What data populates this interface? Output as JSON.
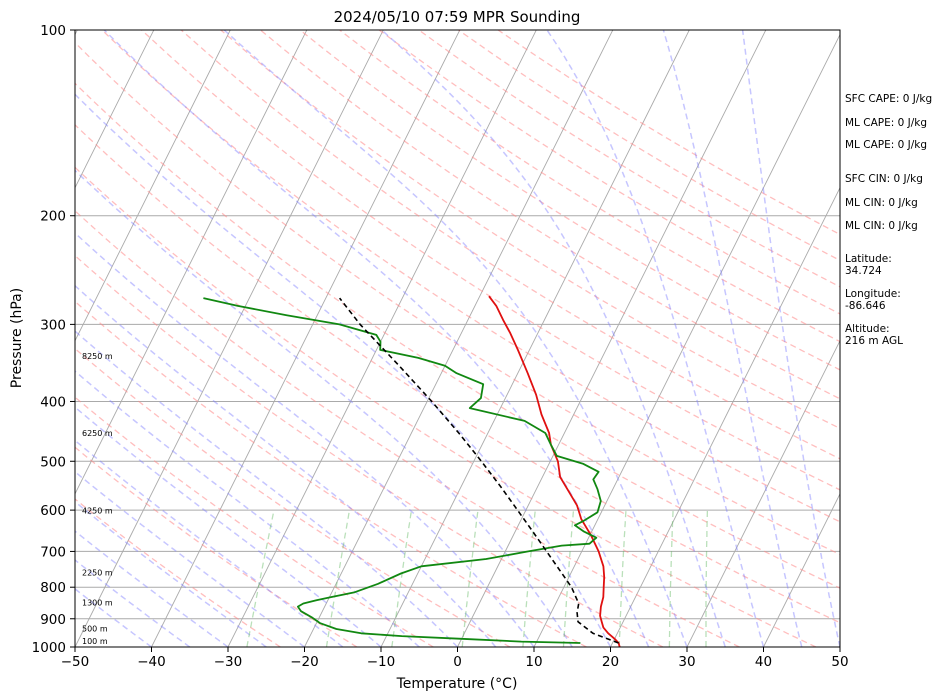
{
  "chart_data": {
    "type": "line",
    "title": "2024/05/10 07:59 MPR Sounding",
    "xlabel": "Temperature (°C)",
    "ylabel": "Pressure (hPa)",
    "xlim": [
      -50,
      50
    ],
    "ylim": [
      1000,
      100
    ],
    "y_scale": "log",
    "skew": true,
    "x_ticks": [
      "−50",
      "−40",
      "−30",
      "−20",
      "−10",
      "0",
      "10",
      "20",
      "30",
      "40",
      "50"
    ],
    "y_ticks": [
      "1000",
      "900",
      "800",
      "700",
      "600",
      "500",
      "400",
      "300",
      "200",
      "100"
    ],
    "grid": true,
    "series": [
      {
        "role": "temperature",
        "color": "#e01010",
        "points": [
          [
            1000,
            21.2
          ],
          [
            985,
            20.8
          ],
          [
            970,
            20.0
          ],
          [
            950,
            18.8
          ],
          [
            930,
            17.8
          ],
          [
            910,
            17.2
          ],
          [
            890,
            16.6
          ],
          [
            860,
            16.1
          ],
          [
            830,
            15.8
          ],
          [
            800,
            15.2
          ],
          [
            770,
            14.6
          ],
          [
            740,
            13.8
          ],
          [
            700,
            12.2
          ],
          [
            660,
            10.2
          ],
          [
            620,
            7.8
          ],
          [
            590,
            6.4
          ],
          [
            560,
            4.4
          ],
          [
            530,
            2.3
          ],
          [
            500,
            1.0
          ],
          [
            470,
            -1.0
          ],
          [
            450,
            -2.0
          ],
          [
            420,
            -4.2
          ],
          [
            390,
            -6.2
          ],
          [
            360,
            -8.7
          ],
          [
            330,
            -11.5
          ],
          [
            310,
            -13.6
          ],
          [
            295,
            -15.4
          ],
          [
            280,
            -17.2
          ],
          [
            270,
            -18.8
          ]
        ]
      },
      {
        "role": "dewpoint",
        "color": "#118811",
        "points": [
          [
            985,
            15.8
          ],
          [
            980,
            8.0
          ],
          [
            970,
            0.0
          ],
          [
            960,
            -8.0
          ],
          [
            950,
            -13.5
          ],
          [
            935,
            -17.0
          ],
          [
            915,
            -19.5
          ],
          [
            895,
            -21.0
          ],
          [
            875,
            -22.8
          ],
          [
            860,
            -23.5
          ],
          [
            850,
            -23.0
          ],
          [
            840,
            -21.5
          ],
          [
            830,
            -19.8
          ],
          [
            815,
            -17.0
          ],
          [
            790,
            -14.5
          ],
          [
            760,
            -12.2
          ],
          [
            740,
            -10.0
          ],
          [
            720,
            -2.0
          ],
          [
            700,
            3.0
          ],
          [
            685,
            7.0
          ],
          [
            680,
            10.5
          ],
          [
            665,
            11.0
          ],
          [
            650,
            9.0
          ],
          [
            635,
            7.4
          ],
          [
            625,
            8.2
          ],
          [
            605,
            9.5
          ],
          [
            580,
            9.2
          ],
          [
            555,
            8.0
          ],
          [
            535,
            6.8
          ],
          [
            520,
            7.0
          ],
          [
            505,
            4.5
          ],
          [
            490,
            0.5
          ],
          [
            470,
            -1.0
          ],
          [
            450,
            -2.5
          ],
          [
            430,
            -6.0
          ],
          [
            410,
            -14.0
          ],
          [
            395,
            -13.2
          ],
          [
            375,
            -13.8
          ],
          [
            360,
            -18.0
          ],
          [
            350,
            -20.0
          ],
          [
            340,
            -24.0
          ],
          [
            330,
            -29.5
          ],
          [
            320,
            -30.0
          ],
          [
            312,
            -31.0
          ],
          [
            300,
            -36.5
          ],
          [
            290,
            -44.0
          ],
          [
            280,
            -51.0
          ],
          [
            272,
            -56.0
          ]
        ]
      },
      {
        "role": "parcel",
        "color": "#000000",
        "dashed": true,
        "points": [
          [
            985,
            20.8
          ],
          [
            950,
            16.8
          ],
          [
            910,
            14.1
          ],
          [
            880,
            13.4
          ],
          [
            850,
            13.0
          ],
          [
            800,
            11.0
          ],
          [
            750,
            8.3
          ],
          [
            700,
            5.4
          ],
          [
            650,
            2.3
          ],
          [
            600,
            -1.1
          ],
          [
            550,
            -4.8
          ],
          [
            500,
            -9.0
          ],
          [
            450,
            -13.8
          ],
          [
            400,
            -19.4
          ],
          [
            350,
            -26.0
          ],
          [
            300,
            -33.8
          ],
          [
            272,
            -38.2
          ]
        ]
      }
    ],
    "height_labels": [
      "100 m",
      "500 m",
      "1300 m",
      "2250 m",
      "4250 m",
      "6250 m",
      "8250 m"
    ],
    "height_label_pressures": [
      1000,
      955,
      866,
      775,
      614,
      460,
      345
    ],
    "reference_lines": {
      "isotherms": "gray",
      "dry_adiabats": "#ff8888",
      "moist_adiabats": "#8080ff",
      "mixing_ratio": "#66bb66"
    }
  },
  "info_panel": {
    "sfc_cape": "SFC CAPE: 0 J/kg",
    "ml_cape_1": "ML CAPE: 0 J/kg",
    "ml_cape_2": "ML CAPE: 0 J/kg",
    "sfc_cin": "SFC CIN: 0 J/kg",
    "ml_cin_1": "ML CIN: 0 J/kg",
    "ml_cin_2": "ML CIN: 0 J/kg",
    "latitude_label": "Latitude:",
    "latitude_value": "34.724",
    "longitude_label": "Longitude:",
    "longitude_value": "-86.646",
    "altitude_label": "Altitude:",
    "altitude_value": "216 m AGL"
  }
}
